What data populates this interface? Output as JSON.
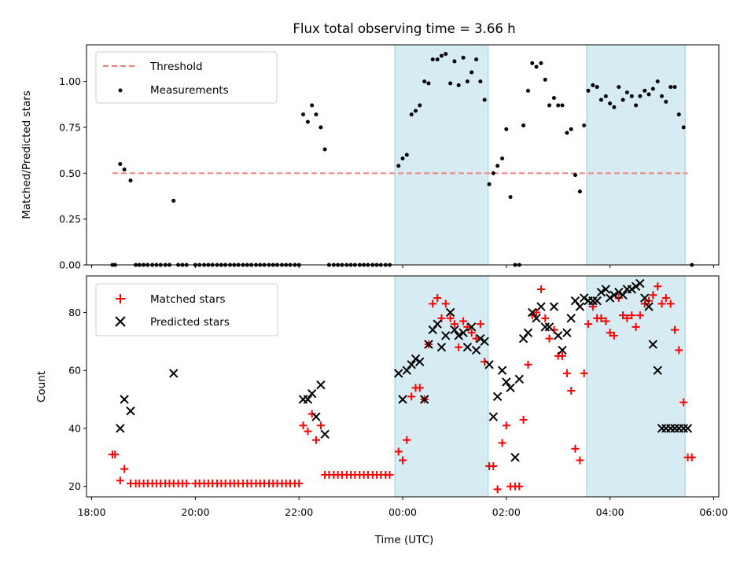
{
  "chart_data": [
    {
      "type": "scatter",
      "title": "Flux total observing time = 3.66 h",
      "xlabel": "",
      "ylabel": "Matched/Predicted stars",
      "ylim": [
        0,
        1.2
      ],
      "yticks": [
        "0.00",
        "0.25",
        "0.50",
        "0.75",
        "1.00"
      ],
      "grid": false,
      "legend_position": "upper-left",
      "shaded_intervals_hours": [
        [
          23.85,
          25.65
        ],
        [
          27.55,
          29.45
        ]
      ],
      "threshold": {
        "name": "Threshold",
        "value": 0.5,
        "x_range": [
          18.4,
          29.5
        ],
        "color": "#f08080"
      },
      "series": [
        {
          "name": "Measurements",
          "color": "#000000",
          "x": [
            18.4,
            18.45,
            18.55,
            18.63,
            18.75,
            18.85,
            18.92,
            19.0,
            19.08,
            19.17,
            19.25,
            19.33,
            19.42,
            19.5,
            19.58,
            19.67,
            19.75,
            19.83,
            20.0,
            20.08,
            20.17,
            20.25,
            20.33,
            20.42,
            20.5,
            20.58,
            20.67,
            20.75,
            20.83,
            20.92,
            21.0,
            21.08,
            21.17,
            21.25,
            21.33,
            21.42,
            21.5,
            21.58,
            21.67,
            21.75,
            21.83,
            21.92,
            22.0,
            22.08,
            22.17,
            22.25,
            22.33,
            22.42,
            22.5,
            22.58,
            22.67,
            22.75,
            22.83,
            22.92,
            23.0,
            23.08,
            23.17,
            23.25,
            23.33,
            23.42,
            23.5,
            23.58,
            23.67,
            23.75,
            23.92,
            24.0,
            24.08,
            24.17,
            24.25,
            24.33,
            24.42,
            24.5,
            24.58,
            24.67,
            24.75,
            24.83,
            24.92,
            25.0,
            25.08,
            25.17,
            25.25,
            25.33,
            25.42,
            25.5,
            25.58,
            25.67,
            25.75,
            25.83,
            25.92,
            26.0,
            26.08,
            26.17,
            26.25,
            26.33,
            26.42,
            26.5,
            26.58,
            26.67,
            26.75,
            26.83,
            26.92,
            27.0,
            27.08,
            27.17,
            27.25,
            27.33,
            27.42,
            27.5,
            27.58,
            27.67,
            27.75,
            27.83,
            27.92,
            28.0,
            28.08,
            28.17,
            28.25,
            28.33,
            28.42,
            28.5,
            28.58,
            28.67,
            28.75,
            28.83,
            28.92,
            29.0,
            29.08,
            29.17,
            29.25,
            29.33,
            29.42,
            29.58
          ],
          "values": [
            0.0,
            0.0,
            0.55,
            0.52,
            0.46,
            0.0,
            0.0,
            0.0,
            0.0,
            0.0,
            0.0,
            0.0,
            0.0,
            0.0,
            0.35,
            0.0,
            0.0,
            0.0,
            0.0,
            0.0,
            0.0,
            0.0,
            0.0,
            0.0,
            0.0,
            0.0,
            0.0,
            0.0,
            0.0,
            0.0,
            0.0,
            0.0,
            0.0,
            0.0,
            0.0,
            0.0,
            0.0,
            0.0,
            0.0,
            0.0,
            0.0,
            0.0,
            0.0,
            0.82,
            0.78,
            0.87,
            0.82,
            0.75,
            0.63,
            0.0,
            0.0,
            0.0,
            0.0,
            0.0,
            0.0,
            0.0,
            0.0,
            0.0,
            0.0,
            0.0,
            0.0,
            0.0,
            0.0,
            0.0,
            0.54,
            0.58,
            0.6,
            0.82,
            0.84,
            0.87,
            1.0,
            0.99,
            1.12,
            1.12,
            1.14,
            1.15,
            0.99,
            1.11,
            0.98,
            1.13,
            1.0,
            1.05,
            1.12,
            1.0,
            0.9,
            0.44,
            0.5,
            0.54,
            0.58,
            0.74,
            0.37,
            0.0,
            0.0,
            0.76,
            0.95,
            1.1,
            1.08,
            1.1,
            1.01,
            0.87,
            0.91,
            0.87,
            0.87,
            0.72,
            0.74,
            0.49,
            0.4,
            0.76,
            0.95,
            0.98,
            0.97,
            0.9,
            0.92,
            0.88,
            0.86,
            0.97,
            0.9,
            0.94,
            0.92,
            0.87,
            0.92,
            0.95,
            0.93,
            0.96,
            1.0,
            0.92,
            0.89,
            0.97,
            0.97,
            0.82,
            0.75,
            0.0
          ]
        }
      ]
    },
    {
      "type": "scatter",
      "title": "",
      "xlabel": "Time (UTC)",
      "ylabel": "Count",
      "xlim": [
        17.9,
        30.1
      ],
      "xticks": [
        "18:00",
        "20:00",
        "22:00",
        "00:00",
        "02:00",
        "04:00",
        "06:00"
      ],
      "xtick_hours": [
        18,
        20,
        22,
        24,
        26,
        28,
        30
      ],
      "ylim": [
        16.4,
        92.6
      ],
      "yticks": [
        "20",
        "40",
        "60",
        "80"
      ],
      "grid": false,
      "legend_position": "upper-left",
      "shaded_intervals_hours": [
        [
          23.85,
          25.65
        ],
        [
          27.55,
          29.45
        ]
      ],
      "series": [
        {
          "name": "Matched stars",
          "marker": "plus",
          "color": "#ff0000",
          "x": [
            18.4,
            18.45,
            18.55,
            18.63,
            18.75,
            18.85,
            18.92,
            19.0,
            19.08,
            19.17,
            19.25,
            19.33,
            19.42,
            19.5,
            19.58,
            19.67,
            19.75,
            19.83,
            20.0,
            20.08,
            20.17,
            20.25,
            20.33,
            20.42,
            20.5,
            20.58,
            20.67,
            20.75,
            20.83,
            20.92,
            21.0,
            21.08,
            21.17,
            21.25,
            21.33,
            21.42,
            21.5,
            21.58,
            21.67,
            21.75,
            21.83,
            21.92,
            22.0,
            22.08,
            22.17,
            22.25,
            22.33,
            22.42,
            22.5,
            22.58,
            22.67,
            22.75,
            22.83,
            22.92,
            23.0,
            23.08,
            23.17,
            23.25,
            23.33,
            23.42,
            23.5,
            23.58,
            23.67,
            23.75,
            23.92,
            24.0,
            24.08,
            24.17,
            24.25,
            24.33,
            24.42,
            24.5,
            24.58,
            24.67,
            24.75,
            24.83,
            24.92,
            25.0,
            25.08,
            25.17,
            25.25,
            25.33,
            25.42,
            25.5,
            25.58,
            25.67,
            25.75,
            25.83,
            25.92,
            26.0,
            26.08,
            26.17,
            26.25,
            26.33,
            26.42,
            26.5,
            26.58,
            26.67,
            26.75,
            26.83,
            26.92,
            27.0,
            27.08,
            27.17,
            27.25,
            27.33,
            27.42,
            27.5,
            27.58,
            27.67,
            27.75,
            27.83,
            27.92,
            28.0,
            28.08,
            28.17,
            28.25,
            28.33,
            28.42,
            28.5,
            28.58,
            28.67,
            28.75,
            28.83,
            28.92,
            29.0,
            29.08,
            29.17,
            29.25,
            29.33,
            29.42,
            29.5,
            29.58
          ],
          "values": [
            31,
            31,
            22,
            26,
            21,
            21,
            21,
            21,
            21,
            21,
            21,
            21,
            21,
            21,
            21,
            21,
            21,
            21,
            21,
            21,
            21,
            21,
            21,
            21,
            21,
            21,
            21,
            21,
            21,
            21,
            21,
            21,
            21,
            21,
            21,
            21,
            21,
            21,
            21,
            21,
            21,
            21,
            21,
            41,
            39,
            45,
            36,
            41,
            24,
            24,
            24,
            24,
            24,
            24,
            24,
            24,
            24,
            24,
            24,
            24,
            24,
            24,
            24,
            24,
            32,
            29,
            36,
            51,
            54,
            54,
            50,
            69,
            83,
            85,
            78,
            83,
            78,
            76,
            68,
            77,
            75,
            73,
            71,
            76,
            63,
            27,
            27,
            19,
            35,
            41,
            20,
            20,
            20,
            43,
            62,
            79,
            80,
            88,
            78,
            71,
            74,
            65,
            65,
            59,
            53,
            33,
            29,
            59,
            76,
            82,
            78,
            78,
            77,
            73,
            72,
            85,
            79,
            78,
            79,
            75,
            79,
            83,
            84,
            86,
            89,
            83,
            85,
            83,
            74,
            67,
            49,
            30,
            30
          ]
        },
        {
          "name": "Predicted stars",
          "marker": "x",
          "color": "#000000",
          "x": [
            18.55,
            18.63,
            18.75,
            19.58,
            22.08,
            22.17,
            22.25,
            22.33,
            22.42,
            22.5,
            23.92,
            24.0,
            24.08,
            24.17,
            24.25,
            24.33,
            24.42,
            24.5,
            24.58,
            24.67,
            24.75,
            24.83,
            24.92,
            25.0,
            25.08,
            25.17,
            25.25,
            25.33,
            25.42,
            25.5,
            25.58,
            25.67,
            25.75,
            25.83,
            25.92,
            26.0,
            26.08,
            26.17,
            26.25,
            26.33,
            26.42,
            26.5,
            26.58,
            26.67,
            26.75,
            26.83,
            26.92,
            27.0,
            27.08,
            27.17,
            27.25,
            27.33,
            27.42,
            27.5,
            27.58,
            27.67,
            27.75,
            27.83,
            27.92,
            28.0,
            28.08,
            28.17,
            28.25,
            28.33,
            28.42,
            28.5,
            28.58,
            28.67,
            28.75,
            28.83,
            28.92,
            29.0,
            29.08,
            29.17,
            29.25,
            29.33,
            29.42,
            29.5
          ],
          "values": [
            40,
            50,
            46,
            59,
            50,
            50,
            52,
            44,
            55,
            38,
            59,
            50,
            60,
            62,
            64,
            63,
            50,
            69,
            74,
            76,
            68,
            72,
            80,
            74,
            72,
            73,
            68,
            75,
            67,
            71,
            70,
            62,
            44,
            51,
            60,
            56,
            54,
            30,
            57,
            71,
            73,
            80,
            78,
            82,
            75,
            75,
            82,
            72,
            67,
            73,
            78,
            84,
            82,
            85,
            84,
            84,
            84,
            87,
            88,
            85,
            86,
            87,
            86,
            88,
            88,
            89,
            90,
            85,
            82,
            69,
            60,
            40,
            40,
            40,
            40,
            40,
            40,
            40
          ]
        }
      ]
    }
  ]
}
